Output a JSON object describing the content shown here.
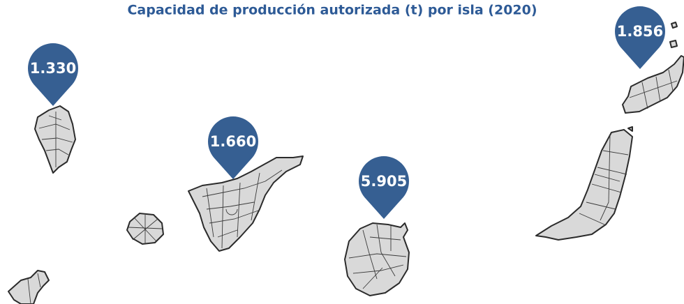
{
  "title": "Capacidad de producción autorizada (t) por isla (2020)",
  "markers": [
    "1.330",
    "1.660",
    "5.905",
    "1.856"
  ]
}
